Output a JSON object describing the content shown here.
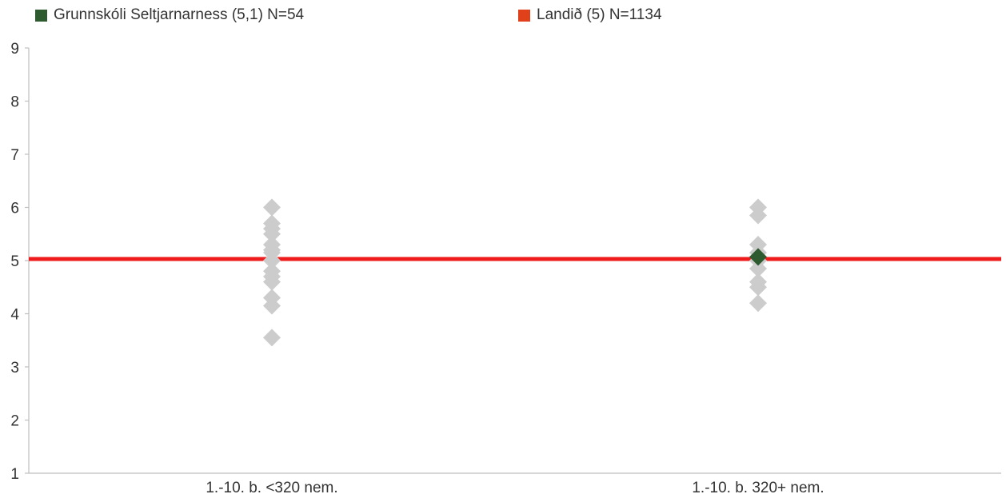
{
  "legend": {
    "school_label": "Grunnskóli Seltjarnarness (5,1) N=54",
    "school_color": "#2e5a30",
    "national_label": "Landið (5) N=1134",
    "national_color": "#e0401a"
  },
  "chart_data": {
    "type": "scatter",
    "title": "",
    "xlabel": "",
    "ylabel": "",
    "ylim": [
      1,
      9
    ],
    "yticks": [
      1,
      2,
      3,
      4,
      5,
      6,
      7,
      8,
      9
    ],
    "categories": [
      "1.-10. b. <320 nem.",
      "1.-10. b. 320+ nem."
    ],
    "series": [
      {
        "role": "other_schools",
        "color": "#cccccc",
        "points": [
          {
            "category": "1.-10. b. <320 nem.",
            "values": [
              6.0,
              5.7,
              5.6,
              5.5,
              5.3,
              5.2,
              5.15,
              5.0,
              4.8,
              4.7,
              4.6,
              4.3,
              4.15,
              3.55
            ]
          },
          {
            "category": "1.-10. b. 320+ nem.",
            "values": [
              6.0,
              5.85,
              5.3,
              5.15,
              5.0,
              4.85,
              4.6,
              4.5,
              4.2
            ]
          }
        ]
      },
      {
        "name": "Grunnskóli Seltjarnarness (5,1) N=54",
        "role": "school",
        "color": "#2e5a30",
        "points": [
          {
            "category": "1.-10. b. 320+ nem.",
            "values": [
              5.07
            ]
          }
        ]
      }
    ],
    "reference_lines": [
      {
        "name": "Landið (5) N=1134",
        "value": 5.03,
        "color": "#ee1c1c"
      }
    ]
  }
}
